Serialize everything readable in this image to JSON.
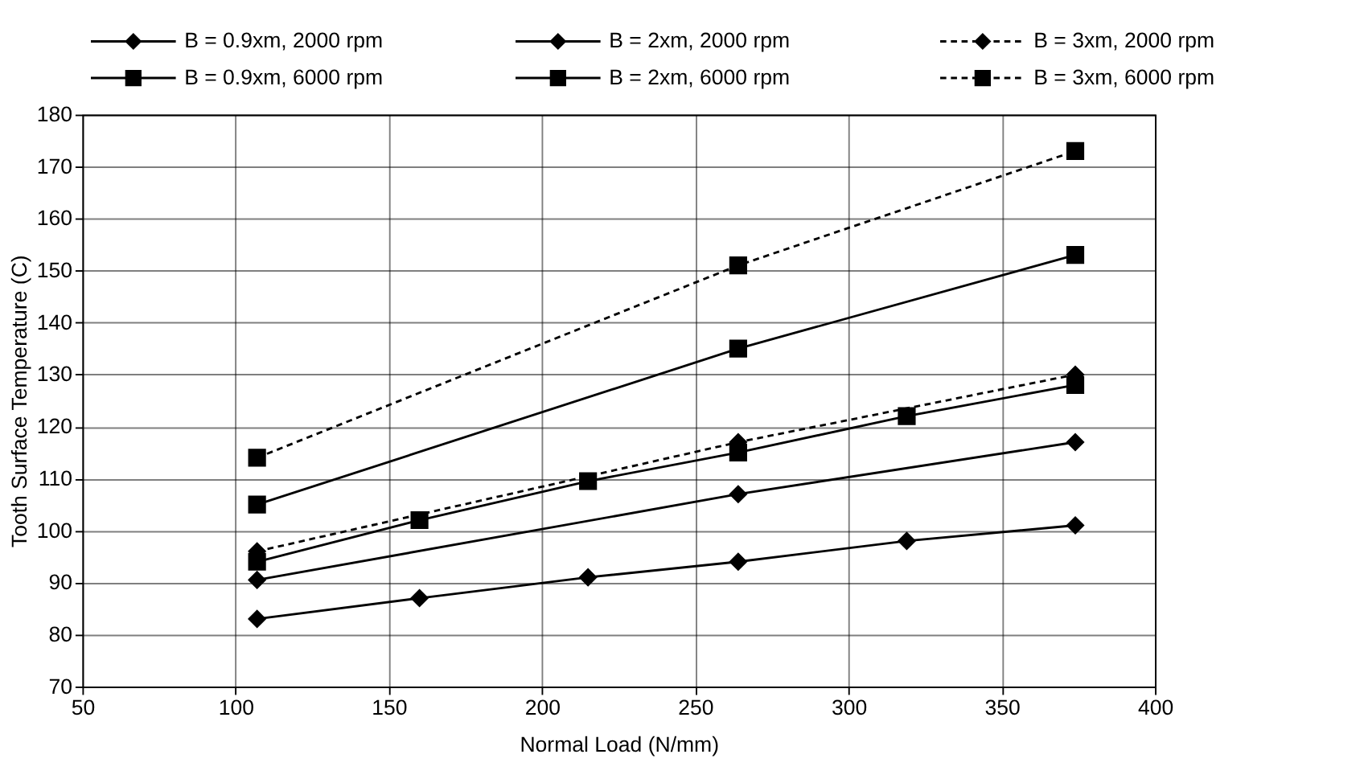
{
  "chart_data": {
    "type": "line",
    "xlabel": "Normal Load (N/mm)",
    "ylabel": "Tooth Surface Temperature (C)",
    "xlim": [
      50,
      400
    ],
    "xticks": [
      50,
      100,
      150,
      200,
      250,
      300,
      350,
      400
    ],
    "ylim": [
      70,
      180
    ],
    "yticks": [
      70,
      80,
      90,
      100,
      110,
      120,
      130,
      140,
      150,
      160,
      170,
      180
    ],
    "grid": true,
    "legend": "top",
    "series": [
      {
        "name": "B = 0.9xm, 2000 rpm",
        "color": "#000000",
        "marker": "diamond",
        "line_style": "solid",
        "x": [
          107,
          160,
          215,
          264,
          319,
          374
        ],
        "values": [
          83,
          87,
          91,
          94,
          98,
          101
        ]
      },
      {
        "name": "B = 2xm, 2000 rpm",
        "color": "#000000",
        "marker": "diamond",
        "line_style": "solid",
        "x": [
          107,
          264,
          374
        ],
        "values": [
          90.5,
          107,
          117
        ]
      },
      {
        "name": "B = 3xm, 2000 rpm",
        "color": "#000000",
        "marker": "diamond",
        "line_style": "dashed",
        "x": [
          107,
          264,
          374
        ],
        "values": [
          96,
          117,
          130
        ]
      },
      {
        "name": "B = 0.9xm, 6000 rpm",
        "color": "#000000",
        "marker": "square",
        "line_style": "solid",
        "x": [
          107,
          160,
          215,
          264,
          319,
          374
        ],
        "values": [
          94,
          102,
          109.5,
          115,
          122,
          128
        ]
      },
      {
        "name": "B = 2xm, 6000 rpm",
        "color": "#000000",
        "marker": "square",
        "line_style": "solid",
        "x": [
          107,
          264,
          374
        ],
        "values": [
          105,
          135,
          153
        ]
      },
      {
        "name": "B = 3xm, 6000 rpm",
        "color": "#000000",
        "marker": "square",
        "line_style": "dashed",
        "x": [
          107,
          264,
          374
        ],
        "values": [
          114,
          151,
          173
        ]
      }
    ]
  }
}
